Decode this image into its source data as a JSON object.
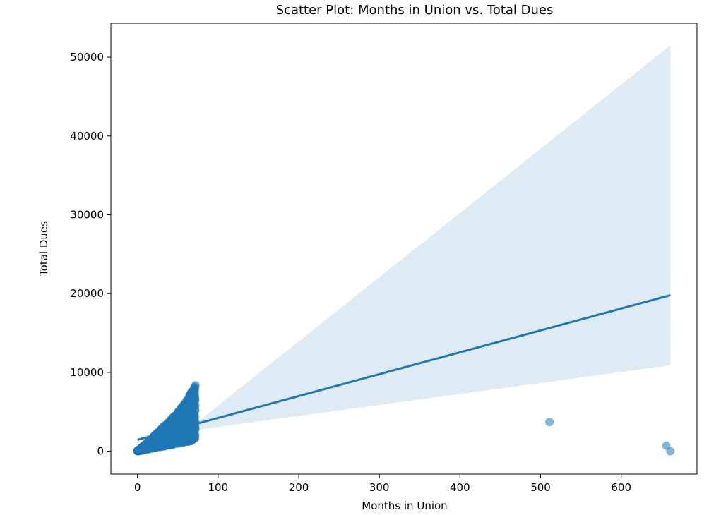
{
  "chart_data": {
    "type": "scatter",
    "title": "Scatter Plot: Months in Union vs. Total Dues",
    "xlabel": "Months in Union",
    "ylabel": "Total Dues",
    "xlim": [
      -33,
      694
    ],
    "ylim": [
      -2900,
      54300
    ],
    "xticks": [
      0,
      100,
      200,
      300,
      400,
      500,
      600
    ],
    "yticks": [
      0,
      10000,
      20000,
      30000,
      40000,
      50000
    ],
    "grid": false,
    "colors": {
      "points": "#1f77b4",
      "line": "#1f77b4",
      "band": "#1f77b4",
      "axes": "#000000"
    },
    "dense_cluster": {
      "description_free": true,
      "x_range": [
        0,
        72
      ],
      "upper_bound": [
        [
          0,
          60
        ],
        [
          10,
          900
        ],
        [
          20,
          1900
        ],
        [
          30,
          2900
        ],
        [
          40,
          3900
        ],
        [
          50,
          5000
        ],
        [
          60,
          6300
        ],
        [
          72,
          8400
        ]
      ],
      "lower_bound": [
        [
          0,
          0
        ],
        [
          10,
          180
        ],
        [
          20,
          380
        ],
        [
          30,
          560
        ],
        [
          40,
          750
        ],
        [
          50,
          950
        ],
        [
          60,
          1150
        ],
        [
          72,
          1400
        ]
      ]
    },
    "outliers": [
      {
        "x": 511,
        "y": 3700
      },
      {
        "x": 656,
        "y": 700
      },
      {
        "x": 661,
        "y": 0
      }
    ],
    "regression": {
      "points": [
        [
          0,
          1450
        ],
        [
          661,
          19800
        ]
      ],
      "ci_lower": [
        [
          0,
          1300
        ],
        [
          72,
          2700
        ],
        [
          661,
          10900
        ]
      ],
      "ci_upper": [
        [
          0,
          1600
        ],
        [
          72,
          3500
        ],
        [
          661,
          51500
        ]
      ]
    }
  }
}
